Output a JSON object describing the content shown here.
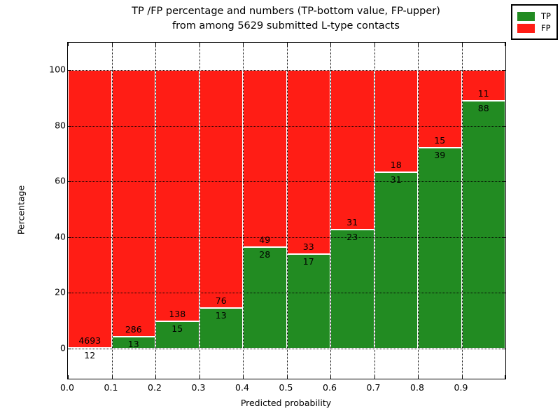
{
  "figure": {
    "title_line1": "TP /FP percentage and numbers (TP-bottom value, FP-upper)",
    "title_line2": "from among 5629 submitted L-type contacts"
  },
  "chart_data": {
    "type": "bar",
    "stacked": true,
    "unit": "percent of bin total",
    "title": "TP /FP percentage and numbers (TP-bottom value, FP-upper) from among 5629 submitted L-type contacts",
    "xlabel": "Predicted probability",
    "ylabel": "Percentage",
    "bin_edges": [
      0.0,
      0.1,
      0.2,
      0.3,
      0.4,
      0.5,
      0.6,
      0.7,
      0.8,
      0.9,
      1.0
    ],
    "series": [
      {
        "name": "TP",
        "color": "#228b22",
        "values": [
          12,
          13,
          15,
          13,
          28,
          17,
          23,
          31,
          39,
          88
        ]
      },
      {
        "name": "FP",
        "color": "#ff1d15",
        "values": [
          4693,
          286,
          138,
          76,
          49,
          33,
          31,
          18,
          15,
          11
        ]
      }
    ],
    "bar_total_percent": 100,
    "x_tick_labels": [
      "0.0",
      "0.1",
      "0.2",
      "0.3",
      "0.4",
      "0.5",
      "0.6",
      "0.7",
      "0.8",
      "0.9"
    ],
    "y_tick_values": [
      0,
      20,
      40,
      60,
      80,
      100
    ],
    "xlim": [
      0.0,
      1.0
    ],
    "ylim": [
      -10.8,
      109.8
    ],
    "grid": true,
    "grid_style": "dotted",
    "legend": {
      "position": "upper right",
      "entries": [
        {
          "label": "TP",
          "color": "#228b22"
        },
        {
          "label": "FP",
          "color": "#ff1d15"
        }
      ]
    }
  }
}
